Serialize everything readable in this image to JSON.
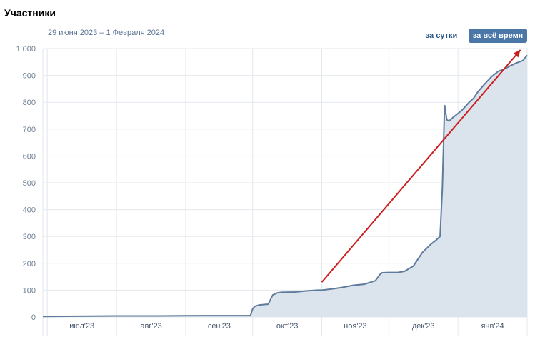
{
  "header": {
    "title": "Участники",
    "date_range": "29 июня 2023 – 1 Февраля 2024",
    "btn_day": "за сутки",
    "btn_all": "за всё время"
  },
  "colors": {
    "line": "#5f7c9c",
    "area": "#dbe3ec",
    "grid": "#e3e8ee",
    "arrow": "#cc1d1d",
    "accent": "#4a76a8"
  },
  "chart_data": {
    "type": "area",
    "title": "Участники",
    "x_ticks": [
      "июл'23",
      "авг'23",
      "сен'23",
      "окт'23",
      "ноя'23",
      "дек'23",
      "янв'24"
    ],
    "y_ticks": [
      "0",
      "100",
      "200",
      "300",
      "400",
      "500",
      "600",
      "700",
      "800",
      "900",
      "1 000"
    ],
    "ylim": [
      0,
      1000
    ],
    "xlim": [
      "2023-06-29",
      "2024-02-01"
    ],
    "grid": true,
    "series": [
      {
        "x": [
          "2023-06-29",
          "2023-07-15",
          "2023-08-01",
          "2023-08-20",
          "2023-09-10",
          "2023-09-30",
          "2023-10-01",
          "2023-10-02",
          "2023-10-04",
          "2023-10-08",
          "2023-10-10",
          "2023-10-12",
          "2023-10-14",
          "2023-10-20",
          "2023-10-25",
          "2023-10-30",
          "2023-11-01",
          "2023-11-06",
          "2023-11-10",
          "2023-11-15",
          "2023-11-20",
          "2023-11-25",
          "2023-11-27",
          "2023-11-28",
          "2023-12-01",
          "2023-12-05",
          "2023-12-08",
          "2023-12-12",
          "2023-12-16",
          "2023-12-20",
          "2023-12-22",
          "2023-12-24",
          "2023-12-25",
          "2023-12-26",
          "2023-12-27",
          "2023-12-28",
          "2023-12-30",
          "2024-01-01",
          "2024-01-03",
          "2024-01-06",
          "2024-01-08",
          "2024-01-10",
          "2024-01-13",
          "2024-01-16",
          "2024-01-19",
          "2024-01-22",
          "2024-01-25",
          "2024-01-27",
          "2024-01-30",
          "2024-02-01"
        ],
        "values": [
          2,
          3,
          4,
          4,
          5,
          5,
          30,
          40,
          45,
          48,
          82,
          90,
          92,
          93,
          97,
          100,
          100,
          105,
          110,
          118,
          122,
          135,
          158,
          165,
          166,
          166,
          170,
          190,
          240,
          272,
          285,
          300,
          480,
          790,
          735,
          730,
          745,
          758,
          772,
          800,
          815,
          840,
          868,
          895,
          915,
          925,
          938,
          946,
          955,
          975
        ]
      }
    ],
    "annotations": [
      {
        "type": "arrow",
        "from": {
          "x": "2023-11-01",
          "y": 130
        },
        "to": {
          "x": "2024-01-29",
          "y": 995
        }
      }
    ]
  }
}
